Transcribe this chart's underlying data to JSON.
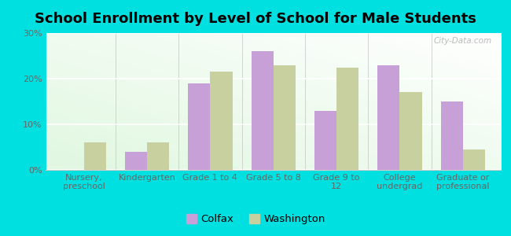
{
  "title": "School Enrollment by Level of School for Male Students",
  "categories": [
    "Nursery,\npreschool",
    "Kindergarten",
    "Grade 1 to 4",
    "Grade 5 to 8",
    "Grade 9 to\n12",
    "College\nundergrad",
    "Graduate or\nprofessional"
  ],
  "colfax": [
    0,
    4,
    19,
    26,
    13,
    23,
    15
  ],
  "washington": [
    6,
    6,
    21.5,
    23,
    22.5,
    17,
    4.5
  ],
  "colfax_color": "#c8a0d8",
  "washington_color": "#c8d0a0",
  "background_color": "#00e0e0",
  "ylim": [
    0,
    30
  ],
  "yticks": [
    0,
    10,
    20,
    30
  ],
  "ytick_labels": [
    "0%",
    "10%",
    "20%",
    "30%"
  ],
  "bar_width": 0.35,
  "title_fontsize": 13,
  "tick_fontsize": 8,
  "legend_fontsize": 9.5,
  "watermark": "City-Data.com"
}
